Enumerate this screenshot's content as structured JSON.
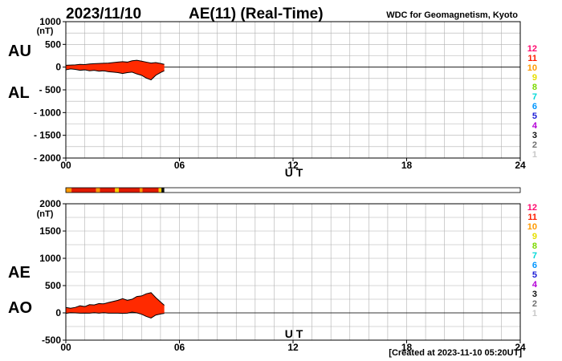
{
  "header": {
    "date": "2023/11/10",
    "title": "AE(11) (Real-Time)",
    "source": "WDC for Geomagnetism, Kyoto"
  },
  "footer": {
    "created": "[Created at 2023-11-10 05:20UT]"
  },
  "colors": {
    "fill_main": "#ff2a00",
    "fill_dark": "#cc1500",
    "outline": "#000000",
    "grid": "#b0b0b0",
    "bar_red": "#e01a00",
    "bar_orange": "#ff9a00",
    "bar_yellow": "#ffd000"
  },
  "station_scale": [
    {
      "label": "12",
      "color": "#ff0a6e"
    },
    {
      "label": "11",
      "color": "#ff1c00"
    },
    {
      "label": "10",
      "color": "#ff9a00"
    },
    {
      "label": "9",
      "color": "#e6e000"
    },
    {
      "label": "8",
      "color": "#7cd900"
    },
    {
      "label": "7",
      "color": "#00d8d8"
    },
    {
      "label": "6",
      "color": "#0096ff"
    },
    {
      "label": "5",
      "color": "#1c1cd6"
    },
    {
      "label": "4",
      "color": "#b400d8"
    },
    {
      "label": "3",
      "color": "#111111"
    },
    {
      "label": "2",
      "color": "#707070"
    },
    {
      "label": "1",
      "color": "#c8c8c8"
    }
  ],
  "chart_data": [
    {
      "type": "area",
      "series_labels": [
        "AU",
        "AL"
      ],
      "unit": "(nT)",
      "xlabel": "U T",
      "xlim": [
        0,
        24
      ],
      "x_ticks": [
        "00",
        "06",
        "12",
        "18",
        "24"
      ],
      "ylim": [
        -2000,
        1000
      ],
      "y_ticks": [
        "1000",
        "500",
        "0",
        "- 500",
        "- 1000",
        "- 1500",
        "- 2000"
      ],
      "grid": true,
      "x": [
        0,
        0.25,
        0.5,
        0.75,
        1.0,
        1.25,
        1.5,
        1.75,
        2.0,
        2.25,
        2.5,
        2.75,
        3.0,
        3.25,
        3.5,
        3.75,
        4.0,
        4.25,
        4.5,
        4.75,
        5.0,
        5.2
      ],
      "series": [
        {
          "name": "AU",
          "values": [
            40,
            45,
            50,
            60,
            55,
            70,
            75,
            80,
            85,
            90,
            100,
            110,
            120,
            110,
            140,
            150,
            130,
            110,
            90,
            100,
            80,
            60
          ]
        },
        {
          "name": "AL",
          "values": [
            -60,
            -40,
            -50,
            -70,
            -60,
            -80,
            -70,
            -90,
            -80,
            -100,
            -110,
            -120,
            -140,
            -120,
            -110,
            -150,
            -180,
            -240,
            -280,
            -180,
            -120,
            -80
          ]
        }
      ]
    },
    {
      "type": "area",
      "series_labels": [
        "AE",
        "AO"
      ],
      "unit": "(nT)",
      "xlabel": "U T",
      "xlim": [
        0,
        24
      ],
      "x_ticks": [
        "00",
        "06",
        "12",
        "18",
        "24"
      ],
      "ylim": [
        -500,
        2000
      ],
      "y_ticks": [
        "2000",
        "1500",
        "1000",
        "500",
        "0",
        "-500"
      ],
      "grid": true,
      "x": [
        0,
        0.25,
        0.5,
        0.75,
        1.0,
        1.25,
        1.5,
        1.75,
        2.0,
        2.25,
        2.5,
        2.75,
        3.0,
        3.25,
        3.5,
        3.75,
        4.0,
        4.25,
        4.5,
        4.75,
        5.0,
        5.2
      ],
      "series": [
        {
          "name": "AE",
          "values": [
            100,
            85,
            100,
            130,
            115,
            150,
            145,
            170,
            165,
            190,
            210,
            230,
            260,
            230,
            250,
            300,
            310,
            350,
            370,
            280,
            200,
            140
          ]
        },
        {
          "name": "AO",
          "values": [
            -10,
            3,
            0,
            -5,
            -3,
            -5,
            3,
            -5,
            3,
            -5,
            -5,
            -5,
            -10,
            -5,
            15,
            0,
            -25,
            -65,
            -95,
            -40,
            -20,
            -10
          ]
        }
      ]
    }
  ],
  "station_bar": {
    "x_end": 5.2,
    "segments": [
      {
        "from": 0,
        "to": 0.3,
        "color": "#ff9a00"
      },
      {
        "from": 0.3,
        "to": 1.6,
        "color": "#e01a00"
      },
      {
        "from": 1.6,
        "to": 1.8,
        "color": "#ff9a00"
      },
      {
        "from": 1.8,
        "to": 2.6,
        "color": "#e01a00"
      },
      {
        "from": 2.6,
        "to": 2.8,
        "color": "#ffd000"
      },
      {
        "from": 2.8,
        "to": 3.9,
        "color": "#e01a00"
      },
      {
        "from": 3.9,
        "to": 4.05,
        "color": "#ff9a00"
      },
      {
        "from": 4.05,
        "to": 4.9,
        "color": "#e01a00"
      },
      {
        "from": 4.9,
        "to": 5.05,
        "color": "#ffd000"
      },
      {
        "from": 5.05,
        "to": 5.2,
        "color": "#111111"
      }
    ]
  }
}
